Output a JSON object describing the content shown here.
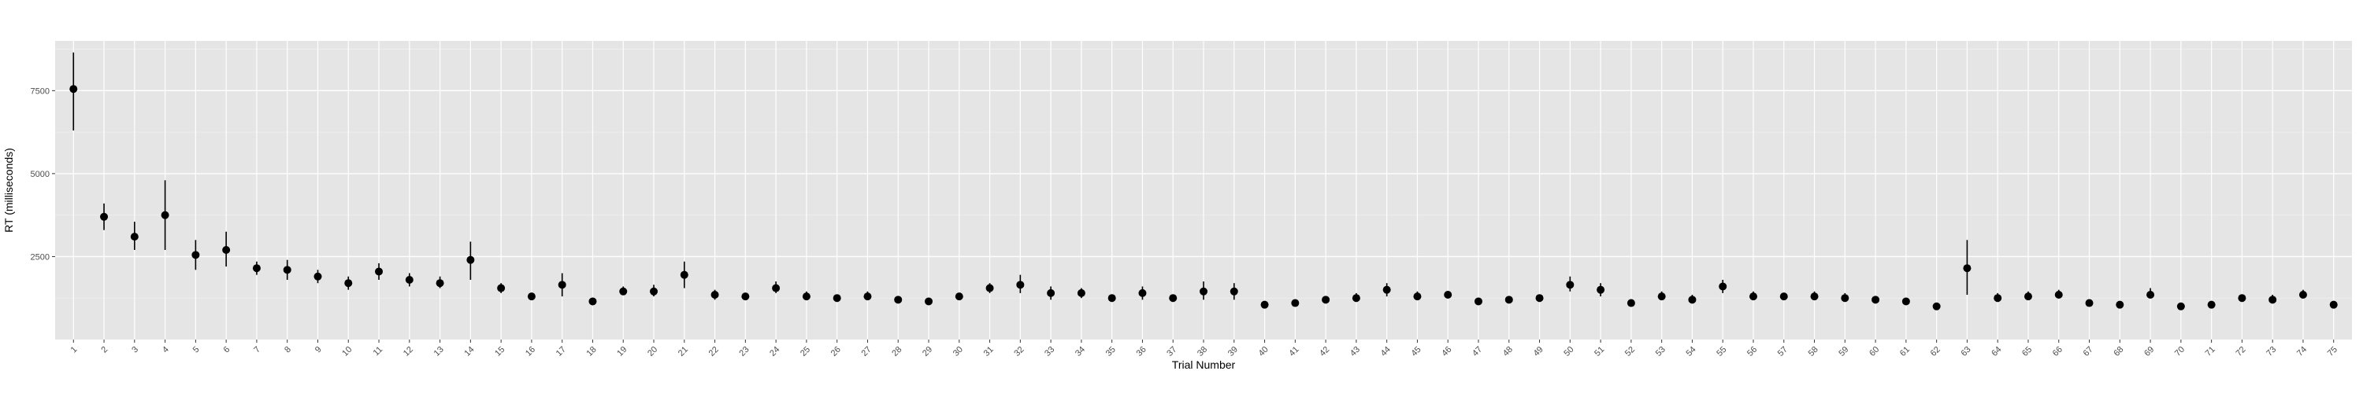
{
  "chart_data": {
    "type": "scatter",
    "style": "point-range",
    "xlabel": "Trial Number",
    "ylabel": "RT (milliseconds)",
    "ylim": [
      0,
      9000
    ],
    "y_ticks": [
      2500,
      5000,
      7500
    ],
    "y_tick_labels": [
      "2500",
      "5000",
      "7500"
    ],
    "grid": true,
    "legend": "none",
    "colors": {
      "panel": "#e5e5e5",
      "grid_major": "#ffffff",
      "grid_minor": "#f0f0f0",
      "point": "#000000",
      "tick_text": "#4d4d4d"
    },
    "categories": [
      "1",
      "2",
      "3",
      "4",
      "5",
      "6",
      "7",
      "8",
      "9",
      "10",
      "11",
      "12",
      "13",
      "14",
      "15",
      "16",
      "17",
      "18",
      "19",
      "20",
      "21",
      "22",
      "23",
      "24",
      "25",
      "26",
      "27",
      "28",
      "29",
      "30",
      "31",
      "32",
      "33",
      "34",
      "35",
      "36",
      "37",
      "38",
      "39",
      "40",
      "41",
      "42",
      "43",
      "44",
      "45",
      "46",
      "47",
      "48",
      "49",
      "50",
      "51",
      "52",
      "53",
      "54",
      "55",
      "56",
      "57",
      "58",
      "59",
      "60",
      "61",
      "62",
      "63",
      "64",
      "65",
      "66",
      "67",
      "68",
      "69",
      "70",
      "71",
      "72",
      "73",
      "74",
      "75"
    ],
    "values": [
      7550,
      3700,
      3100,
      3750,
      2550,
      2700,
      2150,
      2100,
      1900,
      1700,
      2050,
      1800,
      1700,
      2400,
      1550,
      1300,
      1650,
      1150,
      1450,
      1450,
      1950,
      1350,
      1300,
      1550,
      1300,
      1250,
      1300,
      1200,
      1150,
      1300,
      1550,
      1650,
      1400,
      1400,
      1250,
      1400,
      1250,
      1450,
      1450,
      1050,
      1100,
      1200,
      1250,
      1500,
      1300,
      1350,
      1150,
      1200,
      1250,
      1650,
      1500,
      1100,
      1300,
      1200,
      1600,
      1300,
      1300,
      1300,
      1250,
      1200,
      1150,
      1000,
      2150,
      1250,
      1300,
      1350,
      1100,
      1050,
      1350,
      1000,
      1050,
      1250,
      1200,
      1350,
      1050
    ],
    "lower": [
      6300,
      3300,
      2700,
      2700,
      2100,
      2200,
      1950,
      1800,
      1700,
      1500,
      1800,
      1600,
      1550,
      1800,
      1400,
      1250,
      1300,
      1100,
      1350,
      1300,
      1550,
      1200,
      1250,
      1400,
      1200,
      1200,
      1200,
      1150,
      1100,
      1200,
      1400,
      1400,
      1200,
      1250,
      1200,
      1200,
      1150,
      1200,
      1200,
      1000,
      1050,
      1100,
      1150,
      1300,
      1200,
      1250,
      1100,
      1100,
      1150,
      1450,
      1300,
      1050,
      1200,
      1100,
      1400,
      1200,
      1250,
      1200,
      1150,
      1150,
      1100,
      950,
      1350,
      1150,
      1200,
      1250,
      1050,
      1000,
      1250,
      950,
      1000,
      1150,
      1100,
      1250,
      1000
    ],
    "upper": [
      8650,
      4100,
      3550,
      4800,
      3000,
      3250,
      2350,
      2400,
      2100,
      1900,
      2300,
      2000,
      1900,
      2950,
      1700,
      1400,
      2000,
      1250,
      1600,
      1650,
      2350,
      1500,
      1400,
      1750,
      1450,
      1350,
      1450,
      1300,
      1250,
      1400,
      1700,
      1950,
      1600,
      1550,
      1350,
      1600,
      1350,
      1750,
      1700,
      1150,
      1200,
      1300,
      1400,
      1700,
      1450,
      1450,
      1250,
      1300,
      1350,
      1900,
      1700,
      1200,
      1450,
      1350,
      1800,
      1450,
      1350,
      1450,
      1400,
      1300,
      1250,
      1100,
      3000,
      1400,
      1450,
      1500,
      1200,
      1150,
      1550,
      1100,
      1150,
      1350,
      1350,
      1500,
      1150
    ]
  }
}
